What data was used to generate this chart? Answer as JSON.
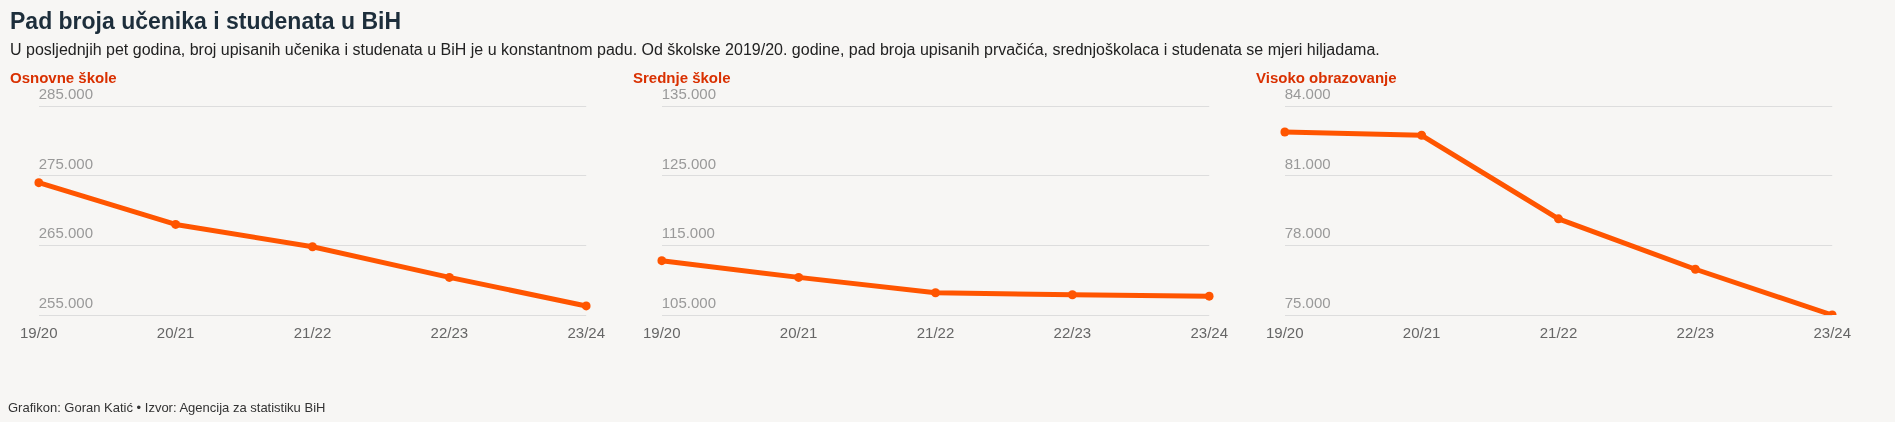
{
  "chart_data": [
    {
      "type": "other",
      "title": "Pad broja učenika i studenata u BiH",
      "subtitle": "U posljednjih pet godina, broj upisanih učenika i studenata u BiH je u konstantnom padu. Od školske 2019/20. godine, pad broja upisanih prvačića, srednjoškolaca i studenata se mjeri hiljadama.",
      "annotations": [
        "Grafikon: Goran Katić • Izvor: Agencija za statistiku BiH"
      ]
    },
    {
      "type": "line",
      "title": "Osnovne škole",
      "categories": [
        "19/20",
        "20/21",
        "21/22",
        "22/23",
        "23/24"
      ],
      "series": [
        {
          "color": "#ff5500",
          "values": [
            274000,
            268000,
            264800,
            260400,
            256300
          ]
        }
      ],
      "ylim": [
        255000,
        285000
      ],
      "yticks": [
        {
          "value": 255000,
          "label": "255.000"
        },
        {
          "value": 265000,
          "label": "265.000"
        },
        {
          "value": 275000,
          "label": "275.000"
        },
        {
          "value": 285000,
          "label": "285.000"
        }
      ],
      "grid": "y",
      "marker": "circle",
      "legend": false
    },
    {
      "type": "line",
      "title": "Srednje škole",
      "categories": [
        "19/20",
        "20/21",
        "21/22",
        "22/23",
        "23/24"
      ],
      "series": [
        {
          "color": "#ff5500",
          "values": [
            112800,
            110400,
            108200,
            107900,
            107700
          ]
        }
      ],
      "ylim": [
        105000,
        135000
      ],
      "yticks": [
        {
          "value": 105000,
          "label": "105.000"
        },
        {
          "value": 115000,
          "label": "115.000"
        },
        {
          "value": 125000,
          "label": "125.000"
        },
        {
          "value": 135000,
          "label": "135.000"
        }
      ],
      "grid": "y",
      "marker": "circle",
      "legend": false
    },
    {
      "type": "line",
      "title": "Visoko obrazovanje",
      "categories": [
        "19/20",
        "20/21",
        "21/22",
        "22/23",
        "23/24"
      ],
      "series": [
        {
          "color": "#ff5500",
          "values": [
            82880,
            82740,
            79140,
            76970,
            75000
          ]
        }
      ],
      "ylim": [
        75000,
        84000
      ],
      "yticks": [
        {
          "value": 75000,
          "label": "75.000"
        },
        {
          "value": 78000,
          "label": "78.000"
        },
        {
          "value": 81000,
          "label": "81.000"
        },
        {
          "value": 84000,
          "label": "84.000"
        }
      ],
      "grid": "y",
      "marker": "circle",
      "legend": false
    }
  ]
}
